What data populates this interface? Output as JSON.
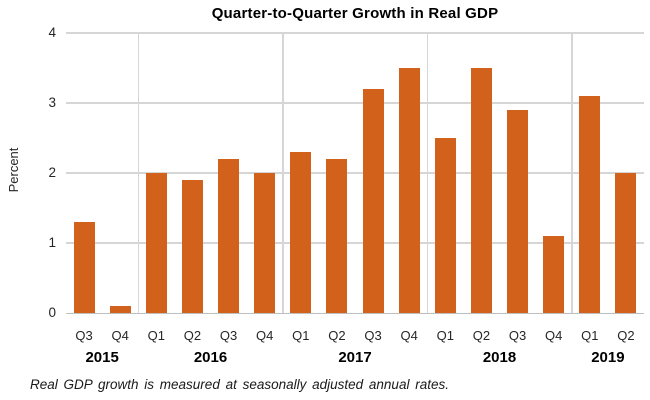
{
  "chart_data": {
    "type": "bar",
    "title": "Quarter-to-Quarter Growth in Real GDP",
    "ylabel": "Percent",
    "note": "Real GDP growth is measured at seasonally adjusted annual rates.",
    "ylim": [
      0,
      4
    ],
    "yticks": [
      0,
      1,
      2,
      3,
      4
    ],
    "grid": true,
    "legend": "none",
    "bar_color": "#D2611C",
    "gridline_color": "#D6D6D6",
    "axis_color": "#BFBFBF",
    "groups": [
      {
        "year": "2015",
        "quarters": [
          "Q3",
          "Q4"
        ],
        "values": [
          1.3,
          0.1
        ]
      },
      {
        "year": "2016",
        "quarters": [
          "Q1",
          "Q2",
          "Q3",
          "Q4"
        ],
        "values": [
          2.0,
          1.9,
          2.2,
          2.0
        ]
      },
      {
        "year": "2017",
        "quarters": [
          "Q1",
          "Q2",
          "Q3",
          "Q4"
        ],
        "values": [
          2.3,
          2.2,
          3.2,
          3.5
        ]
      },
      {
        "year": "2018",
        "quarters": [
          "Q1",
          "Q2",
          "Q3",
          "Q4"
        ],
        "values": [
          2.5,
          3.5,
          2.9,
          1.1
        ]
      },
      {
        "year": "2019",
        "quarters": [
          "Q1",
          "Q2"
        ],
        "values": [
          3.1,
          2.0
        ]
      }
    ]
  }
}
